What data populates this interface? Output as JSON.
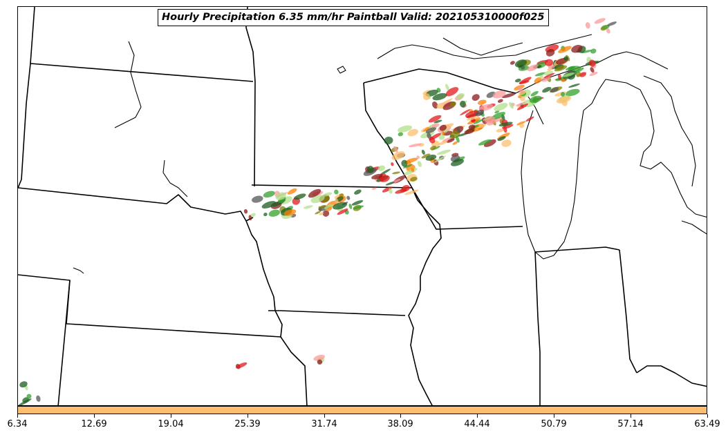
{
  "title": "Hourly Precipitation 6.35 mm/hr Paintball Valid: 202105310000f025",
  "colorbar": {
    "color": "#fdbf6f",
    "min": 6.34,
    "max": 63.49,
    "tick_labels": [
      "6.34",
      "12.69",
      "19.04",
      "25.39",
      "31.74",
      "38.09",
      "44.44",
      "50.79",
      "57.14",
      "63.49"
    ]
  },
  "paintball_colors": [
    "#e31a1c",
    "#ff7f00",
    "#fb9a99",
    "#33a02c",
    "#b2df8a",
    "#808000",
    "#8b1a1a",
    "#fdbf6f",
    "#1b5e20",
    "#555555"
  ],
  "map_style": {
    "land": "#ffffff",
    "borders": "#000000"
  }
}
